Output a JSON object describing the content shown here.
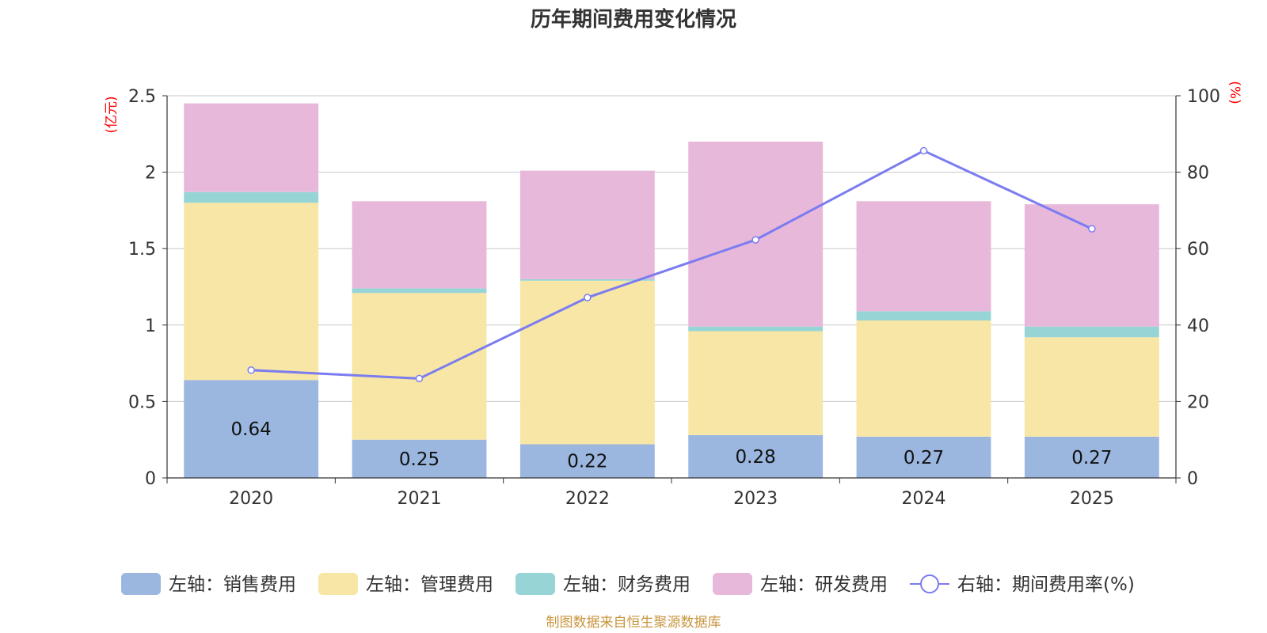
{
  "chart_data": {
    "type": "bar",
    "title": "历年期间费用变化情况",
    "categories": [
      "2020",
      "2021",
      "2022",
      "2023",
      "2024",
      "2025"
    ],
    "left_axis": {
      "unit": "(亿元)",
      "ylim": [
        0,
        2.5
      ],
      "ticks": [
        0,
        0.5,
        1,
        1.5,
        2,
        2.5
      ],
      "tick_labels": [
        "0",
        "0.5",
        "1",
        "1.5",
        "2",
        "2.5"
      ]
    },
    "right_axis": {
      "unit": "(%)",
      "ylim": [
        0,
        100
      ],
      "ticks": [
        0,
        20,
        40,
        60,
        80,
        100
      ],
      "tick_labels": [
        "0",
        "20",
        "40",
        "60",
        "80",
        "100"
      ]
    },
    "series": [
      {
        "name": "左轴：销售费用",
        "kind": "bar",
        "axis": "left",
        "color": "#9bb7e0",
        "values": [
          0.64,
          0.25,
          0.22,
          0.28,
          0.27,
          0.27
        ],
        "labels": [
          "0.64",
          "0.25",
          "0.22",
          "0.28",
          "0.27",
          "0.27"
        ]
      },
      {
        "name": "左轴：管理费用",
        "kind": "bar",
        "axis": "left",
        "color": "#f7e6a6",
        "values": [
          1.16,
          0.96,
          1.07,
          0.68,
          0.76,
          0.65
        ]
      },
      {
        "name": "左轴：财务费用",
        "kind": "bar",
        "axis": "left",
        "color": "#96d4d6",
        "values": [
          0.07,
          0.03,
          0.01,
          0.03,
          0.06,
          0.07
        ]
      },
      {
        "name": "左轴：研发费用",
        "kind": "bar",
        "axis": "left",
        "color": "#e8b8da",
        "values": [
          0.58,
          0.57,
          0.71,
          1.21,
          0.72,
          0.8
        ]
      },
      {
        "name": "右轴：期间费用率(%)",
        "kind": "line",
        "axis": "right",
        "color": "#7b7cf0",
        "values": [
          28.2,
          26.0,
          47.2,
          62.3,
          85.6,
          65.2
        ]
      }
    ],
    "grid": true,
    "legend_position": "bottom"
  },
  "footer": {
    "source": "制图数据来自恒生聚源数据库"
  }
}
